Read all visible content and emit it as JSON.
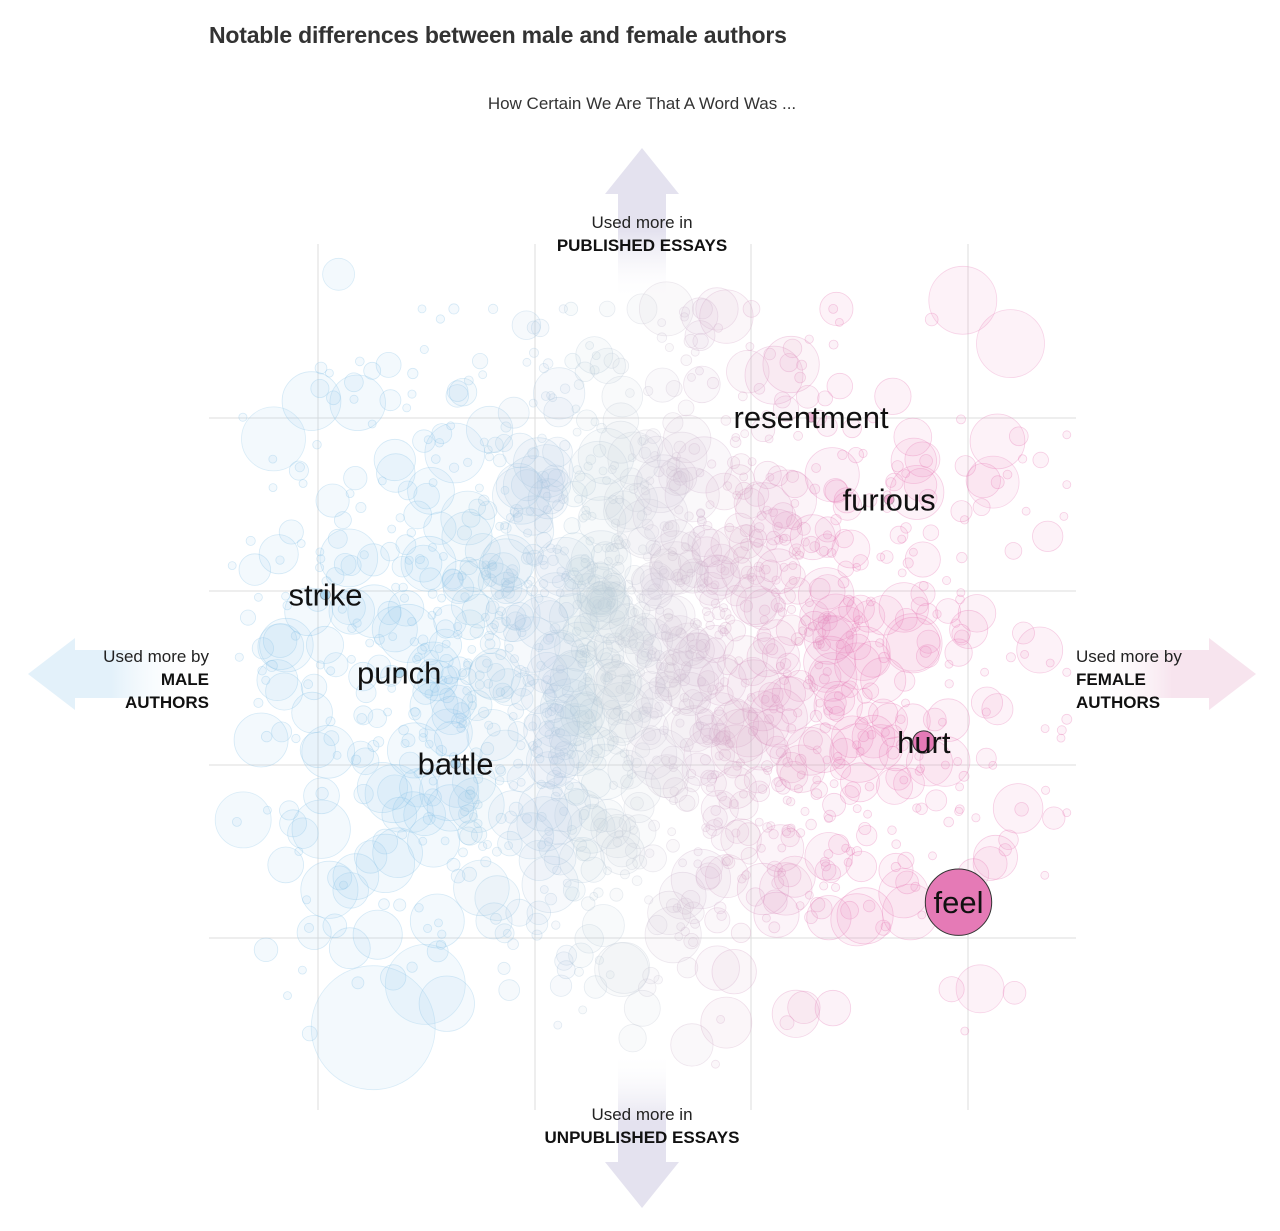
{
  "title": "Notable differences between male and female authors",
  "subtitle": "How Certain We Are That A Word Was ...",
  "axes": {
    "top": {
      "line1": "Used more in",
      "line2": "PUBLISHED ESSAYS"
    },
    "bottom": {
      "line1": "Used more in",
      "line2": "UNPUBLISHED ESSAYS"
    },
    "left": {
      "line1": "Used more by",
      "line2": "MALE",
      "line3": "AUTHORS"
    },
    "right": {
      "line1": "Used more by",
      "line2": "FEMALE",
      "line3": "AUTHORS"
    }
  },
  "colors": {
    "male": "#8ec7e8",
    "neutral": "#c9cbd6",
    "female": "#e77fb8",
    "highlight": "#e57ab6",
    "grid": "#dddddd",
    "arrow_male": "#e3f1fa",
    "arrow_female": "#f7e4ee",
    "arrow_neutral": "#e4e2ef"
  },
  "chart_data": {
    "type": "scatter",
    "title": "Notable differences between male and female authors",
    "xlabel": "Used more by male authors  ←→  Used more by female authors",
    "ylabel": "Used more in unpublished essays  ←→  Used more in published essays",
    "xlim": [
      -1,
      1
    ],
    "ylim": [
      -1,
      1
    ],
    "grid": true,
    "labeled_words": [
      {
        "word": "resentment",
        "x": 0.39,
        "y": 0.6,
        "r": 0.01,
        "highlight": false
      },
      {
        "word": "furious",
        "x": 0.57,
        "y": 0.41,
        "r": 0.01,
        "highlight": false
      },
      {
        "word": "strike",
        "x": -0.73,
        "y": 0.19,
        "r": 0.01,
        "highlight": false
      },
      {
        "word": "punch",
        "x": -0.56,
        "y": 0.01,
        "r": 0.01,
        "highlight": false
      },
      {
        "word": "battle",
        "x": -0.43,
        "y": -0.2,
        "r": 0.01,
        "highlight": false
      },
      {
        "word": "hurt",
        "x": 0.65,
        "y": -0.15,
        "r": 0.03,
        "highlight": true
      },
      {
        "word": "feel",
        "x": 0.73,
        "y": -0.52,
        "r": 0.09,
        "highlight": true
      }
    ],
    "background_words": "approx. 1800 unlabeled words shown as translucent circles, colored blue (male) to grey (neutral) to pink (female)"
  }
}
